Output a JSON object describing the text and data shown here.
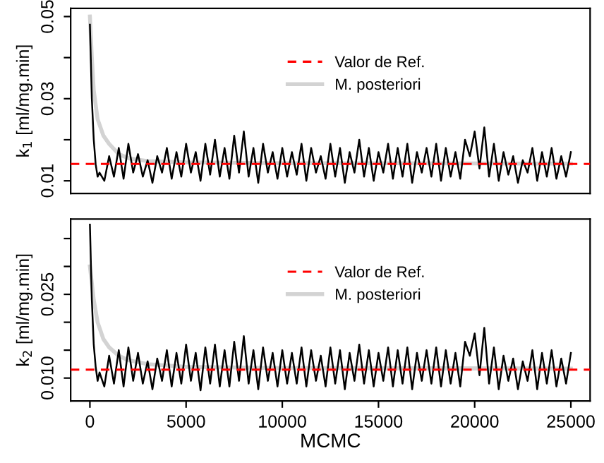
{
  "chart_data": [
    {
      "type": "line",
      "ylabel": "k$_{1}$ [ml/mg.min]",
      "xlim": [
        -1000,
        26000
      ],
      "ylim": [
        0.0069,
        0.052
      ],
      "yticks": [
        0.01,
        {
          "value": 0.02,
          "label": null
        },
        0.03,
        {
          "value": 0.04,
          "label": null
        },
        0.05
      ],
      "tick_labels": "y",
      "grid": false,
      "legend": "top",
      "x": [
        0,
        100,
        200,
        300,
        400,
        500,
        750,
        1000,
        1250,
        1500,
        1750,
        2000,
        2250,
        2500,
        2750,
        3000,
        3250,
        3500,
        3750,
        4000,
        4250,
        4500,
        4750,
        5000,
        5250,
        5500,
        5750,
        6000,
        6250,
        6500,
        6750,
        7000,
        7250,
        7500,
        7750,
        8000,
        8250,
        8500,
        8750,
        9000,
        9250,
        9500,
        9750,
        10000,
        10250,
        10500,
        10750,
        11000,
        11250,
        11500,
        11750,
        12000,
        12250,
        12500,
        12750,
        13000,
        13250,
        13500,
        13750,
        14000,
        14250,
        14500,
        14750,
        15000,
        15250,
        15500,
        15750,
        16000,
        16250,
        16500,
        16750,
        17000,
        17250,
        17500,
        17750,
        18000,
        18250,
        18500,
        18750,
        19000,
        19250,
        19500,
        19750,
        20000,
        20250,
        20500,
        20750,
        21000,
        21250,
        21500,
        21750,
        22000,
        22250,
        22500,
        22750,
        23000,
        23250,
        23500,
        23750,
        24000,
        24250,
        24500,
        24750,
        25000
      ],
      "series": [
        {
          "color": "#000000",
          "values": [
            0.048,
            0.03,
            0.02,
            0.014,
            0.011,
            0.012,
            0.01,
            0.016,
            0.011,
            0.018,
            0.0105,
            0.019,
            0.012,
            0.0165,
            0.011,
            0.015,
            0.0095,
            0.016,
            0.012,
            0.018,
            0.0105,
            0.017,
            0.011,
            0.019,
            0.012,
            0.017,
            0.01,
            0.019,
            0.0115,
            0.02,
            0.011,
            0.018,
            0.0105,
            0.021,
            0.012,
            0.022,
            0.011,
            0.018,
            0.0095,
            0.019,
            0.012,
            0.017,
            0.0105,
            0.018,
            0.011,
            0.017,
            0.0115,
            0.019,
            0.01,
            0.018,
            0.012,
            0.016,
            0.0105,
            0.019,
            0.011,
            0.018,
            0.0095,
            0.017,
            0.012,
            0.02,
            0.011,
            0.018,
            0.01,
            0.017,
            0.012,
            0.019,
            0.0105,
            0.018,
            0.011,
            0.019,
            0.0095,
            0.017,
            0.012,
            0.018,
            0.011,
            0.019,
            0.01,
            0.018,
            0.011,
            0.017,
            0.0105,
            0.02,
            0.016,
            0.022,
            0.013,
            0.023,
            0.011,
            0.019,
            0.01,
            0.017,
            0.0115,
            0.016,
            0.0095,
            0.015,
            0.012,
            0.018,
            0.01,
            0.017,
            0.011,
            0.018,
            0.0105,
            0.016,
            0.011,
            0.017
          ]
        },
        {
          "name": "M. posteriori",
          "color": "#d3d3d3",
          "x": [
            0,
            100,
            200,
            400,
            700,
            1000,
            1500,
            2000,
            3000,
            5000,
            10000,
            25000
          ],
          "values": [
            0.05,
            0.04,
            0.032,
            0.025,
            0.021,
            0.019,
            0.0165,
            0.0155,
            0.0148,
            0.0145,
            0.0143,
            0.0142
          ]
        }
      ],
      "ref_lines": [
        {
          "axis": "y",
          "value": 0.0141,
          "label": "Valor de Ref.",
          "color": "#ff0000",
          "line_style": "dashed"
        }
      ]
    },
    {
      "type": "line",
      "xlabel": "MCMC",
      "ylabel": "k$_{2}$ [ml/mg.min]",
      "xlim": [
        -1000,
        26000
      ],
      "xticks": [
        0,
        5000,
        10000,
        15000,
        20000,
        25000
      ],
      "ylim": [
        0.0059,
        0.0385
      ],
      "yticks": [
        {
          "value": 0.01,
          "label": "0.010"
        },
        {
          "value": 0.015,
          "label": null
        },
        {
          "value": 0.02,
          "label": null
        },
        0.025,
        {
          "value": 0.03,
          "label": null
        },
        {
          "value": 0.035,
          "label": null
        }
      ],
      "grid": false,
      "legend": "top",
      "x": [
        0,
        100,
        200,
        300,
        400,
        500,
        750,
        1000,
        1250,
        1500,
        1750,
        2000,
        2250,
        2500,
        2750,
        3000,
        3250,
        3500,
        3750,
        4000,
        4250,
        4500,
        4750,
        5000,
        5250,
        5500,
        5750,
        6000,
        6250,
        6500,
        6750,
        7000,
        7250,
        7500,
        7750,
        8000,
        8250,
        8500,
        8750,
        9000,
        9250,
        9500,
        9750,
        10000,
        10250,
        10500,
        10750,
        11000,
        11250,
        11500,
        11750,
        12000,
        12250,
        12500,
        12750,
        13000,
        13250,
        13500,
        13750,
        14000,
        14250,
        14500,
        14750,
        15000,
        15250,
        15500,
        15750,
        16000,
        16250,
        16500,
        16750,
        17000,
        17250,
        17500,
        17750,
        18000,
        18250,
        18500,
        18750,
        19000,
        19250,
        19500,
        19750,
        20000,
        20250,
        20500,
        20750,
        21000,
        21250,
        21500,
        21750,
        22000,
        22250,
        22500,
        22750,
        23000,
        23250,
        23500,
        23750,
        24000,
        24250,
        24500,
        24750,
        25000
      ],
      "series": [
        {
          "color": "#000000",
          "values": [
            0.0375,
            0.024,
            0.016,
            0.012,
            0.0095,
            0.011,
            0.0085,
            0.014,
            0.009,
            0.015,
            0.0085,
            0.0155,
            0.0095,
            0.0145,
            0.009,
            0.013,
            0.008,
            0.0135,
            0.0095,
            0.015,
            0.0085,
            0.0145,
            0.009,
            0.016,
            0.0095,
            0.0145,
            0.0078,
            0.0155,
            0.009,
            0.016,
            0.0085,
            0.015,
            0.0085,
            0.0165,
            0.0095,
            0.0175,
            0.009,
            0.015,
            0.008,
            0.0155,
            0.0095,
            0.0145,
            0.0085,
            0.015,
            0.009,
            0.0145,
            0.009,
            0.0155,
            0.0085,
            0.015,
            0.0095,
            0.014,
            0.0085,
            0.0155,
            0.009,
            0.015,
            0.008,
            0.0145,
            0.0095,
            0.016,
            0.009,
            0.015,
            0.0085,
            0.0145,
            0.0095,
            0.0155,
            0.0085,
            0.015,
            0.009,
            0.0155,
            0.008,
            0.0145,
            0.0095,
            0.015,
            0.009,
            0.0155,
            0.0085,
            0.015,
            0.009,
            0.0145,
            0.0085,
            0.0165,
            0.014,
            0.018,
            0.0105,
            0.019,
            0.009,
            0.0155,
            0.008,
            0.014,
            0.0095,
            0.0135,
            0.008,
            0.013,
            0.0095,
            0.015,
            0.008,
            0.0145,
            0.009,
            0.015,
            0.0085,
            0.0135,
            0.009,
            0.0145
          ]
        },
        {
          "name": "M. posteriori",
          "color": "#d3d3d3",
          "x": [
            0,
            100,
            200,
            400,
            700,
            1000,
            1500,
            2000,
            3000,
            5000,
            10000,
            25000
          ],
          "values": [
            0.03,
            0.027,
            0.024,
            0.02,
            0.017,
            0.0155,
            0.014,
            0.0132,
            0.0125,
            0.012,
            0.0118,
            0.0117
          ]
        }
      ],
      "ref_lines": [
        {
          "axis": "y",
          "value": 0.0115,
          "label": "Valor de Ref.",
          "color": "#ff0000",
          "line_style": "dashed"
        }
      ]
    }
  ]
}
